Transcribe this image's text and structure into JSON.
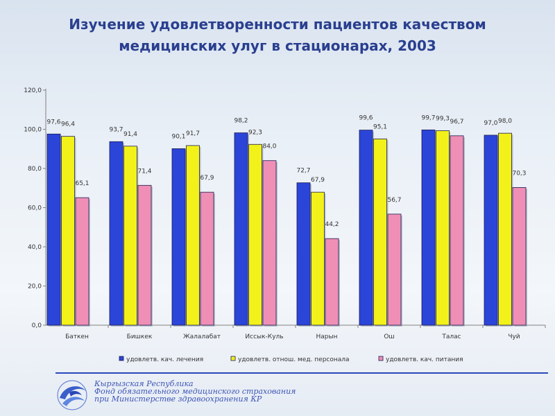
{
  "title_line1": "Изучение удовлетворенности пациентов качеством",
  "title_line2": "медицинских улуг в стационарах, 2003",
  "footer": {
    "line1": "Кыргызская Республика",
    "line2": "Фонд обязательного медицинского страхования",
    "line3": "при Министерстве здравоохранения КР"
  },
  "chart_data": {
    "type": "bar",
    "categories": [
      "Баткен",
      "Бишкек",
      "Жалалабат",
      "Иссык-Куль",
      "Нарын",
      "Ош",
      "Талас",
      "Чуй"
    ],
    "series": [
      {
        "name": "удовлетв. кач. лечения",
        "values": [
          97.6,
          93.7,
          90.1,
          98.2,
          72.7,
          99.6,
          99.7,
          97.0
        ],
        "labels": [
          "97,6",
          "93,7",
          "90,1",
          "98,2",
          "72,7",
          "99,6",
          "99,7",
          "97,0"
        ],
        "color": "#2b45d8"
      },
      {
        "name": "удовлетв. отнош. мед. персонала",
        "values": [
          96.4,
          91.4,
          91.7,
          92.3,
          67.9,
          95.1,
          99.3,
          98.0
        ],
        "labels": [
          "96,4",
          "91,4",
          "91,7",
          "92,3",
          "67,9",
          "95,1",
          "99,3",
          "98,0"
        ],
        "color": "#f2f21a"
      },
      {
        "name": "удовлетв. кач. питания",
        "values": [
          65.1,
          71.4,
          67.9,
          84.0,
          44.2,
          56.7,
          96.7,
          70.3
        ],
        "labels": [
          "65,1",
          "71,4",
          "67,9",
          "84,0",
          "44,2",
          "56,7",
          "96,7",
          "70,3"
        ],
        "color": "#ef8fb6"
      }
    ],
    "ylim": [
      0,
      120
    ],
    "yticks": [
      0,
      20,
      40,
      60,
      80,
      100,
      120
    ],
    "ytick_labels": [
      "0,0",
      "20,0",
      "40,0",
      "60,0",
      "80,0",
      "100,0",
      "120,0"
    ],
    "grid": false,
    "legend_position": "bottom"
  }
}
